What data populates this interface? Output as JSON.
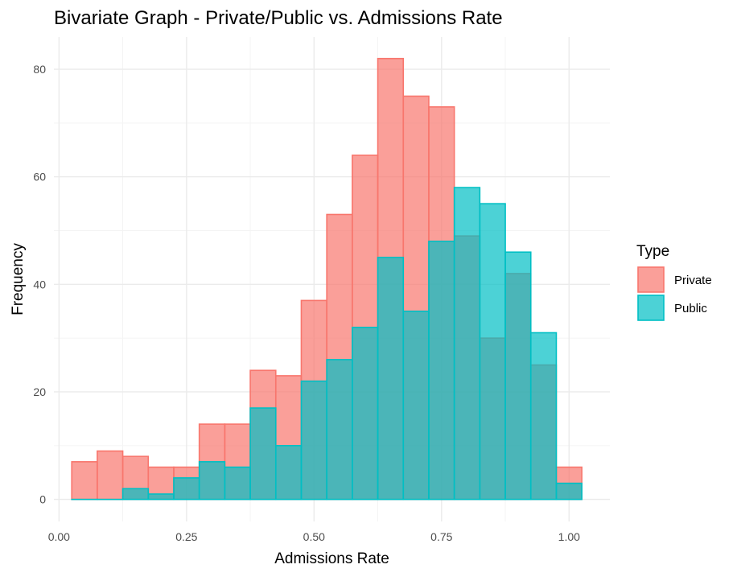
{
  "chart_data": {
    "type": "bar",
    "title": "Bivariate Graph - Private/Public vs. Admissions Rate",
    "xlabel": "Admissions Rate",
    "ylabel": "Frequency",
    "xlim": [
      -0.01,
      1.08
    ],
    "ylim": [
      -4.1,
      86
    ],
    "x_ticks": [
      0.0,
      0.25,
      0.5,
      0.75,
      1.0
    ],
    "x_tick_labels": [
      "0.00",
      "0.25",
      "0.50",
      "0.75",
      "1.00"
    ],
    "y_ticks": [
      0,
      20,
      40,
      60,
      80
    ],
    "y_tick_labels": [
      "0",
      "20",
      "40",
      "60",
      "80"
    ],
    "grid": true,
    "legend": {
      "title": "Type",
      "position": "right"
    },
    "bin_width": 0.05,
    "bin_centers": [
      0.05,
      0.1,
      0.15,
      0.2,
      0.25,
      0.3,
      0.35,
      0.4,
      0.45,
      0.5,
      0.55,
      0.6,
      0.65,
      0.7,
      0.75,
      0.8,
      0.85,
      0.9,
      0.95,
      1.0
    ],
    "series": [
      {
        "name": "Private",
        "fill": "#F8766D",
        "values": [
          7,
          9,
          8,
          6,
          6,
          14,
          14,
          24,
          23,
          37,
          53,
          64,
          82,
          75,
          73,
          49,
          30,
          42,
          25,
          6
        ]
      },
      {
        "name": "Public",
        "fill": "#00BFC4",
        "values": [
          0,
          0,
          2,
          1,
          4,
          7,
          6,
          17,
          10,
          22,
          26,
          32,
          45,
          35,
          48,
          58,
          55,
          46,
          31,
          3
        ]
      }
    ]
  }
}
